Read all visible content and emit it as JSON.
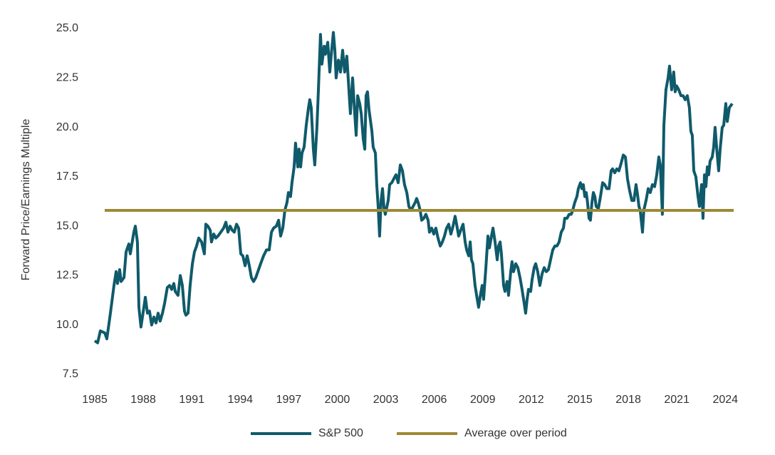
{
  "chart_data": {
    "type": "line",
    "y_label": "Forward Price/Earnings Multiple",
    "x": [
      1985.0,
      1985.18,
      1985.35,
      1985.62,
      1985.75,
      1985.97,
      1986.19,
      1986.32,
      1986.41,
      1986.54,
      1986.63,
      1986.81,
      1986.94,
      1987.11,
      1987.2,
      1987.42,
      1987.51,
      1987.64,
      1987.73,
      1987.86,
      1988.04,
      1988.13,
      1988.26,
      1988.39,
      1988.52,
      1988.66,
      1988.79,
      1988.92,
      1989.05,
      1989.19,
      1989.32,
      1989.49,
      1989.63,
      1989.76,
      1989.89,
      1989.98,
      1990.15,
      1990.29,
      1990.42,
      1990.55,
      1990.64,
      1990.77,
      1990.9,
      1991.04,
      1991.17,
      1991.3,
      1991.43,
      1991.61,
      1991.78,
      1991.87,
      1992.0,
      1992.14,
      1992.22,
      1992.36,
      1992.49,
      1992.62,
      1992.8,
      1992.97,
      1993.11,
      1993.24,
      1993.37,
      1993.5,
      1993.63,
      1993.77,
      1993.9,
      1994.03,
      1994.16,
      1994.3,
      1994.43,
      1994.56,
      1994.69,
      1994.82,
      1994.96,
      1995.09,
      1995.26,
      1995.44,
      1995.62,
      1995.79,
      1995.93,
      1996.06,
      1996.23,
      1996.37,
      1996.5,
      1996.63,
      1996.76,
      1996.89,
      1996.98,
      1997.11,
      1997.2,
      1997.33,
      1997.42,
      1997.56,
      1997.64,
      1997.73,
      1997.82,
      1997.95,
      1998.08,
      1998.22,
      1998.3,
      1998.39,
      1998.52,
      1998.61,
      1998.74,
      1998.83,
      1998.96,
      1999.05,
      1999.19,
      1999.27,
      1999.41,
      1999.54,
      1999.63,
      1999.76,
      1999.85,
      1999.93,
      2000.07,
      2000.2,
      2000.33,
      2000.46,
      2000.59,
      2000.73,
      2000.81,
      2000.95,
      2001.08,
      2001.17,
      2001.26,
      2001.39,
      2001.48,
      2001.61,
      2001.7,
      2001.78,
      2001.87,
      2001.96,
      2002.14,
      2002.22,
      2002.36,
      2002.44,
      2002.53,
      2002.62,
      2002.71,
      2002.8,
      2002.89,
      2002.97,
      2003.15,
      2003.24,
      2003.37,
      2003.5,
      2003.63,
      2003.77,
      2003.9,
      2004.03,
      2004.16,
      2004.3,
      2004.43,
      2004.56,
      2004.69,
      2004.82,
      2004.91,
      2005.0,
      2005.13,
      2005.22,
      2005.35,
      2005.48,
      2005.62,
      2005.7,
      2005.84,
      2005.97,
      2006.1,
      2006.23,
      2006.37,
      2006.5,
      2006.63,
      2006.76,
      2006.89,
      2007.03,
      2007.16,
      2007.29,
      2007.38,
      2007.51,
      2007.64,
      2007.78,
      2007.91,
      2008.0,
      2008.13,
      2008.22,
      2008.3,
      2008.39,
      2008.52,
      2008.66,
      2008.74,
      2008.83,
      2008.96,
      2009.05,
      2009.19,
      2009.32,
      2009.41,
      2009.54,
      2009.63,
      2009.76,
      2009.89,
      2009.98,
      2010.07,
      2010.15,
      2010.29,
      2010.37,
      2010.51,
      2010.59,
      2010.73,
      2010.81,
      2010.9,
      2011.04,
      2011.17,
      2011.3,
      2011.43,
      2011.56,
      2011.65,
      2011.74,
      2011.83,
      2011.96,
      2012.05,
      2012.18,
      2012.27,
      2012.4,
      2012.53,
      2012.67,
      2012.8,
      2012.93,
      2013.06,
      2013.19,
      2013.33,
      2013.46,
      2013.59,
      2013.72,
      2013.85,
      2013.99,
      2014.07,
      2014.21,
      2014.34,
      2014.47,
      2014.56,
      2014.69,
      2014.82,
      2014.91,
      2015.04,
      2015.13,
      2015.22,
      2015.31,
      2015.4,
      2015.48,
      2015.57,
      2015.66,
      2015.75,
      2015.84,
      2015.93,
      2016.01,
      2016.15,
      2016.28,
      2016.41,
      2016.54,
      2016.67,
      2016.81,
      2016.94,
      2017.03,
      2017.16,
      2017.29,
      2017.42,
      2017.56,
      2017.69,
      2017.82,
      2017.95,
      2018.08,
      2018.22,
      2018.35,
      2018.48,
      2018.57,
      2018.66,
      2018.74,
      2018.88,
      2018.96,
      2019.1,
      2019.23,
      2019.36,
      2019.49,
      2019.63,
      2019.76,
      2019.89,
      2019.98,
      2020.11,
      2020.2,
      2020.33,
      2020.46,
      2020.55,
      2020.68,
      2020.81,
      2020.9,
      2020.99,
      2021.12,
      2021.26,
      2021.39,
      2021.52,
      2021.65,
      2021.78,
      2021.87,
      2021.96,
      2022.05,
      2022.18,
      2022.31,
      2022.4,
      2022.53,
      2022.62,
      2022.71,
      2022.8,
      2022.89,
      2022.97,
      2023.06,
      2023.19,
      2023.28,
      2023.37,
      2023.46,
      2023.59,
      2023.68,
      2023.81,
      2023.9,
      2024.03,
      2024.12,
      2024.25,
      2024.43
    ],
    "series": [
      {
        "name": "S&P 500",
        "color": "#0f5a6b",
        "values": [
          9.2,
          9.1,
          9.7,
          9.6,
          9.3,
          10.6,
          12.0,
          12.7,
          12.1,
          12.8,
          12.2,
          12.4,
          13.7,
          14.1,
          13.6,
          14.7,
          15.0,
          14.2,
          10.9,
          9.9,
          10.9,
          11.4,
          10.6,
          10.7,
          10.0,
          10.4,
          10.1,
          10.6,
          10.2,
          10.6,
          11.1,
          11.9,
          12.0,
          11.8,
          12.1,
          11.7,
          11.5,
          12.5,
          12.0,
          10.7,
          10.5,
          10.6,
          12.0,
          13.1,
          13.7,
          14.0,
          14.4,
          14.2,
          13.6,
          15.1,
          15.0,
          14.8,
          14.2,
          14.6,
          14.4,
          14.5,
          14.7,
          14.9,
          15.2,
          14.7,
          15.0,
          14.8,
          14.7,
          15.1,
          14.9,
          13.6,
          13.5,
          13.0,
          13.5,
          13.0,
          12.4,
          12.2,
          12.4,
          12.7,
          13.1,
          13.5,
          13.8,
          13.8,
          14.7,
          14.9,
          15.0,
          15.3,
          14.5,
          14.9,
          15.8,
          16.2,
          16.7,
          16.5,
          17.2,
          18.0,
          19.2,
          18.0,
          18.9,
          18.0,
          18.7,
          19.0,
          20.1,
          21.0,
          21.4,
          21.0,
          18.9,
          18.1,
          20.0,
          21.8,
          24.7,
          23.2,
          24.1,
          23.7,
          24.3,
          22.8,
          23.7,
          24.8,
          23.9,
          22.5,
          23.4,
          22.8,
          23.9,
          22.8,
          23.6,
          21.8,
          20.7,
          22.5,
          20.7,
          19.6,
          21.6,
          21.2,
          20.7,
          19.4,
          18.9,
          21.6,
          21.8,
          20.9,
          19.8,
          19.0,
          18.7,
          17.1,
          16.0,
          14.5,
          16.3,
          16.9,
          15.9,
          15.6,
          16.3,
          17.1,
          17.2,
          17.4,
          17.6,
          17.2,
          18.1,
          17.8,
          17.1,
          16.7,
          16.0,
          15.8,
          16.0,
          16.2,
          16.4,
          16.2,
          15.8,
          15.3,
          15.4,
          15.6,
          15.3,
          14.7,
          14.9,
          14.6,
          14.9,
          14.4,
          14.0,
          14.2,
          14.5,
          14.9,
          15.1,
          14.6,
          15.0,
          15.5,
          15.1,
          14.5,
          14.8,
          15.1,
          14.2,
          13.8,
          13.5,
          14.2,
          13.3,
          13.1,
          12.0,
          11.3,
          10.9,
          11.4,
          12.0,
          11.3,
          12.9,
          14.5,
          13.9,
          14.5,
          14.9,
          14.2,
          13.3,
          14.0,
          14.2,
          13.6,
          12.0,
          11.7,
          12.2,
          11.5,
          12.7,
          13.2,
          12.7,
          13.1,
          12.9,
          12.4,
          11.8,
          11.1,
          10.6,
          11.3,
          11.8,
          11.7,
          12.3,
          12.9,
          13.1,
          12.7,
          12.0,
          12.6,
          12.9,
          12.7,
          12.8,
          13.3,
          13.8,
          14.0,
          14.0,
          14.2,
          14.7,
          14.9,
          15.4,
          15.4,
          15.6,
          15.6,
          15.8,
          16.2,
          16.5,
          16.9,
          17.2,
          16.9,
          17.1,
          16.5,
          16.7,
          16.2,
          15.4,
          15.3,
          16.2,
          16.7,
          16.5,
          16.0,
          15.9,
          16.5,
          17.2,
          17.1,
          16.9,
          16.9,
          17.8,
          17.9,
          17.7,
          17.9,
          17.8,
          18.2,
          18.6,
          18.5,
          17.4,
          16.8,
          16.3,
          16.3,
          17.1,
          16.6,
          16.0,
          15.8,
          14.7,
          15.8,
          16.3,
          16.9,
          16.7,
          17.1,
          17.0,
          17.6,
          18.5,
          18.1,
          15.6,
          20.1,
          21.9,
          22.5,
          23.1,
          21.9,
          22.8,
          21.8,
          22.1,
          21.9,
          21.6,
          21.6,
          21.4,
          21.6,
          21.0,
          19.8,
          19.6,
          17.8,
          17.5,
          16.5,
          16.0,
          17.1,
          15.4,
          17.6,
          17.0,
          18.0,
          17.6,
          18.3,
          18.5,
          19.0,
          20.0,
          19.0,
          17.8,
          18.9,
          20.0,
          20.1,
          21.2,
          20.3,
          21.0,
          21.2
        ]
      }
    ],
    "average": {
      "name": "Average over period",
      "color": "#9c8a36",
      "value": 15.8
    },
    "xlim": [
      1985,
      2024.43
    ],
    "xticks": [
      1985,
      1988,
      1991,
      1994,
      1997,
      2000,
      2003,
      2006,
      2009,
      2012,
      2015,
      2018,
      2021,
      2024
    ],
    "ylim": [
      7.5,
      25
    ],
    "yticks": [
      7.5,
      {
        "value": 10,
        "label": "10.0"
      },
      12.5,
      {
        "value": 15,
        "label": "15.0"
      },
      17.5,
      {
        "value": 20,
        "label": "20.0"
      },
      22.5,
      {
        "value": 25,
        "label": "25.0"
      }
    ],
    "grid": false
  }
}
